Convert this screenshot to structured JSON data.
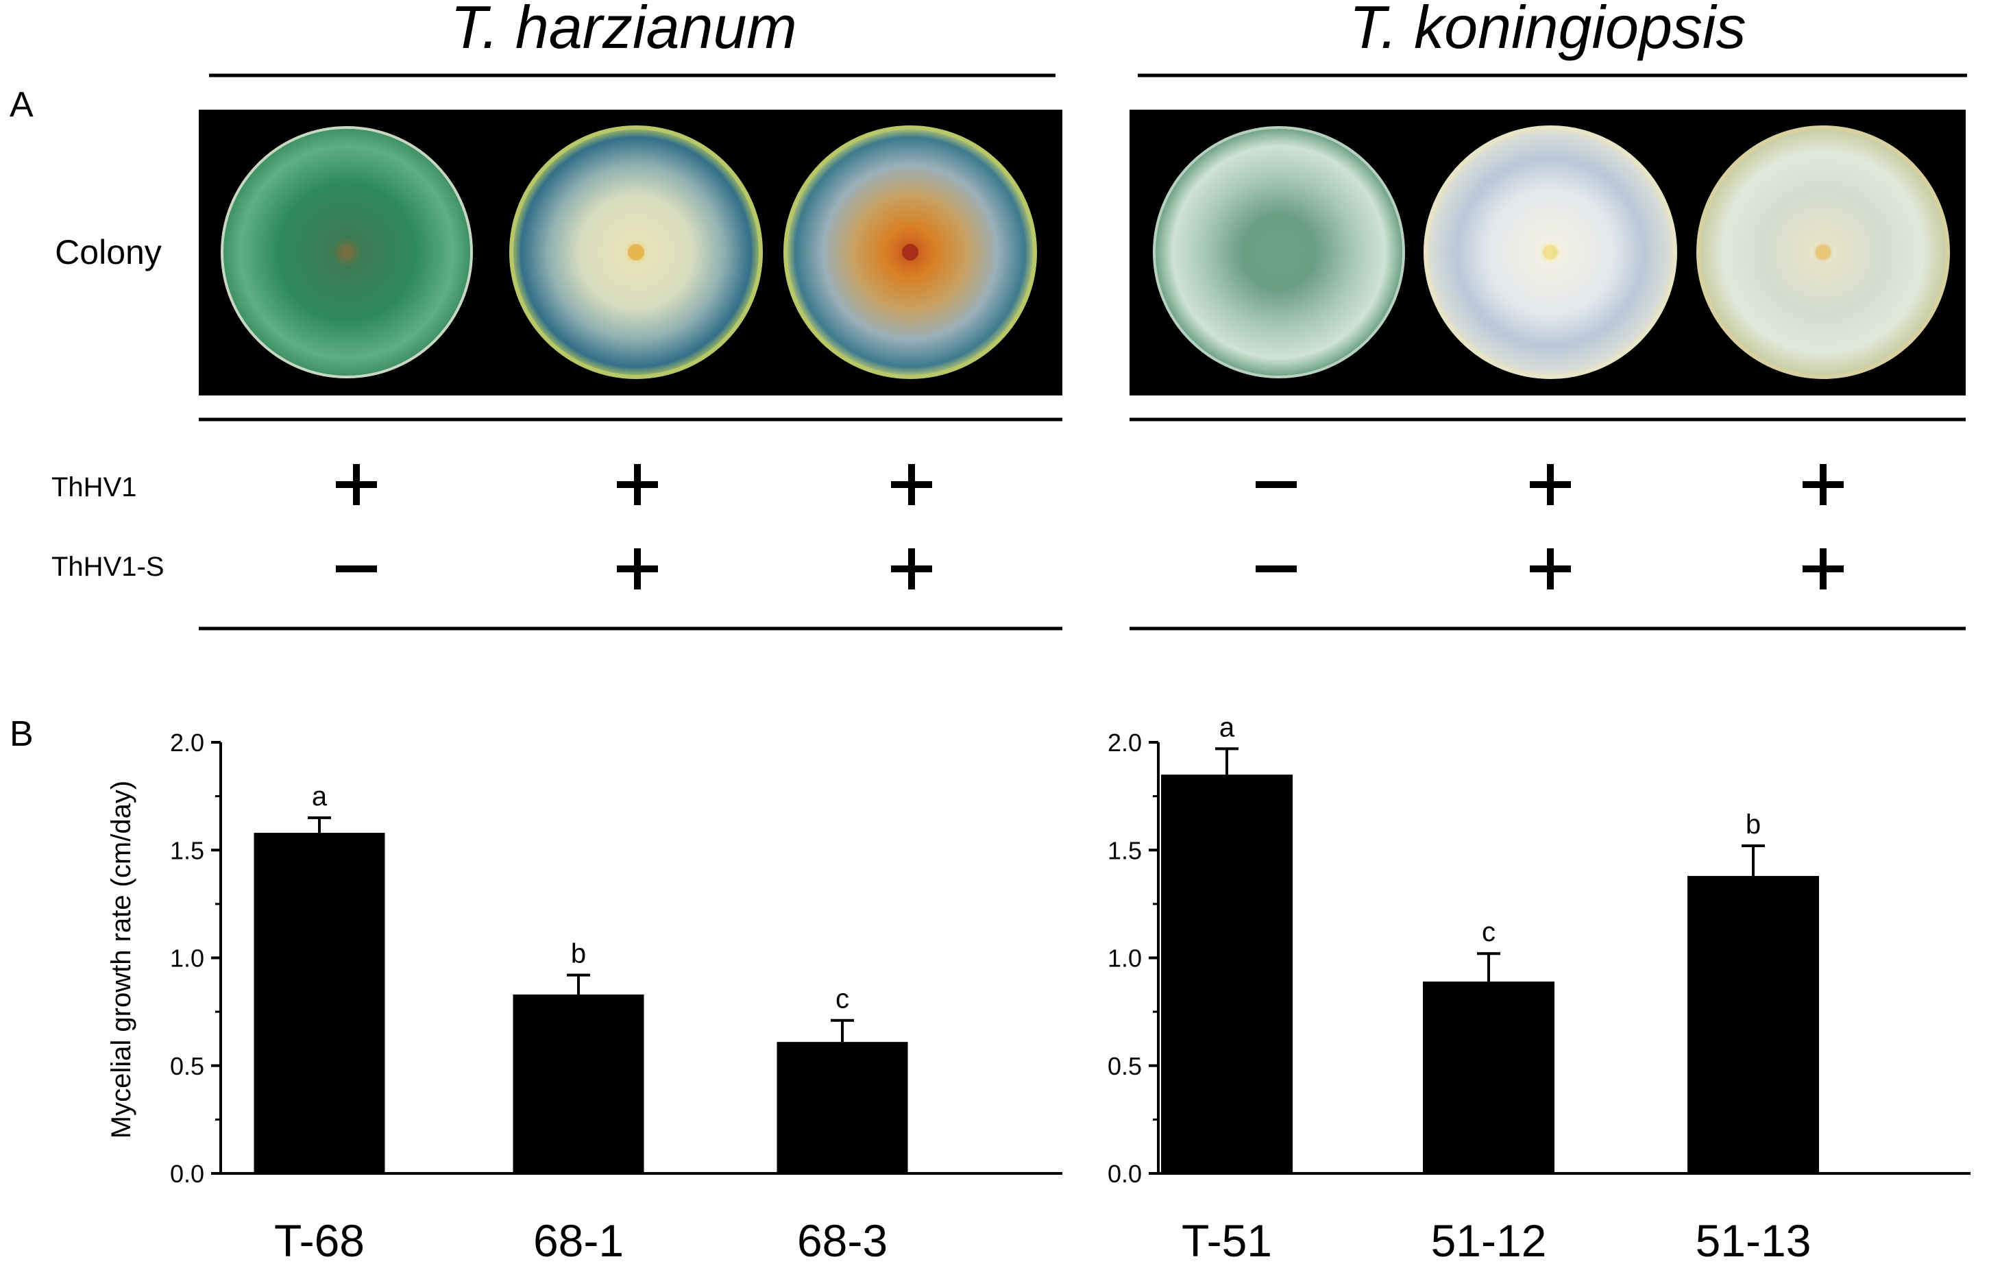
{
  "panel_a": {
    "label": "A",
    "species": [
      "T. harzianum",
      "T. koningiopsis"
    ],
    "row_label": "Colony",
    "markers": [
      {
        "name": "ThHV1",
        "states": [
          "+",
          "+",
          "+",
          "−",
          "+",
          "+"
        ]
      },
      {
        "name": "ThHV1-S",
        "states": [
          "−",
          "+",
          "+",
          "−",
          "+",
          "+"
        ]
      }
    ]
  },
  "panel_b": {
    "label": "B"
  },
  "chart_data": [
    {
      "type": "bar",
      "title": "",
      "xlabel": "",
      "ylabel": "Mycelial growth rate (cm/day)",
      "categories": [
        "T-68",
        "68-1",
        "68-3"
      ],
      "values": [
        1.58,
        0.83,
        0.61
      ],
      "errors": [
        0.07,
        0.09,
        0.1
      ],
      "significance": [
        "a",
        "b",
        "c"
      ],
      "ylim": [
        0,
        2.0
      ],
      "yticks": [
        "0.0",
        "0.5",
        "1.0",
        "1.5",
        "2.0"
      ],
      "color": "#000000"
    },
    {
      "type": "bar",
      "title": "",
      "xlabel": "",
      "ylabel": "",
      "categories": [
        "T-51",
        "51-12",
        "51-13"
      ],
      "values": [
        1.85,
        0.89,
        1.38
      ],
      "errors": [
        0.12,
        0.13,
        0.14
      ],
      "significance": [
        "a",
        "c",
        "b"
      ],
      "ylim": [
        0,
        2.0
      ],
      "yticks": [
        "0.0",
        "0.5",
        "1.0",
        "1.5",
        "2.0"
      ],
      "color": "#000000"
    }
  ]
}
